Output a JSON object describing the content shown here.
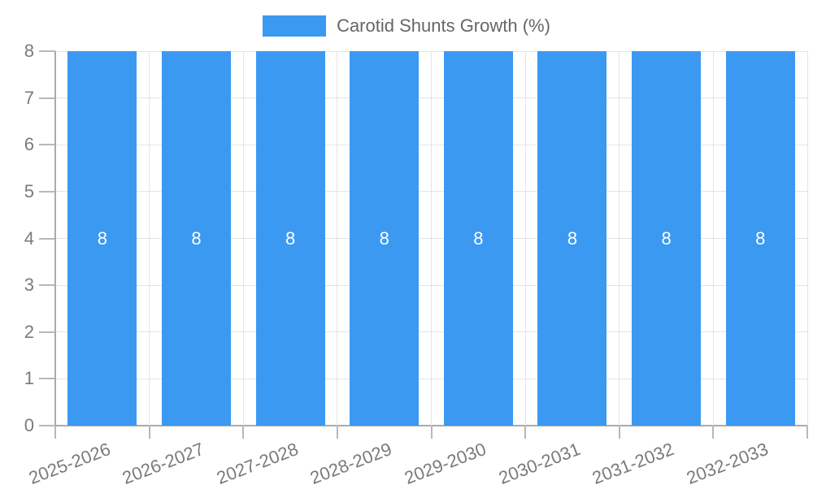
{
  "chart_data": {
    "type": "bar",
    "title": "",
    "legend": {
      "position": "top",
      "label": "Carotid Shunts Growth (%)"
    },
    "categories": [
      "2025-2026",
      "2026-2027",
      "2027-2028",
      "2028-2029",
      "2029-2030",
      "2030-2031",
      "2031-2032",
      "2032-2033"
    ],
    "series": [
      {
        "name": "Carotid Shunts Growth (%)",
        "values": [
          8,
          8,
          8,
          8,
          8,
          8,
          8,
          8
        ],
        "data_labels": [
          "8",
          "8",
          "8",
          "8",
          "8",
          "8",
          "8",
          "8"
        ],
        "color": "#3b99f2"
      }
    ],
    "xlabel": "",
    "ylabel": "",
    "ylim": [
      0,
      8
    ],
    "yticks": [
      0,
      1,
      2,
      3,
      4,
      5,
      6,
      7,
      8
    ],
    "grid": true,
    "x_tick_rotation_deg": -21
  },
  "colors": {
    "bar": "#3b99f2",
    "bar_value_label": "#ffffff",
    "axis_line": "#ababab",
    "gridline": "#e4e4e4",
    "tick": "#b8b8b8",
    "axis_text": "#7a7a7a",
    "legend_text": "#666666",
    "background": "#ffffff"
  }
}
